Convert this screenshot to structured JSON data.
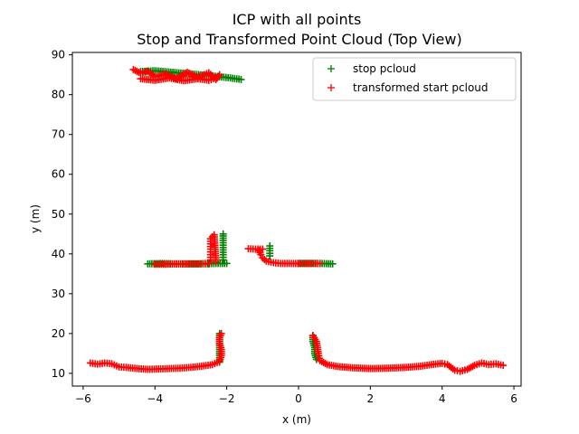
{
  "chart_data": {
    "type": "scatter",
    "title": "ICP with all points",
    "subtitle": "Stop and Transformed Point Cloud (Top View)",
    "xlabel": "x (m)",
    "ylabel": "y (m)",
    "xlim": [
      -6.3,
      6.2
    ],
    "ylim": [
      6.8,
      90.6
    ],
    "xticks": [
      -6,
      -4,
      -2,
      0,
      2,
      4,
      6
    ],
    "yticks": [
      10,
      20,
      30,
      40,
      50,
      60,
      70,
      80,
      90
    ],
    "grid": false,
    "legend_position": "top-right",
    "marker": "+",
    "series": [
      {
        "name": "stop pcloud",
        "color": "#008000",
        "segments": [
          {
            "x": [
              -4.4,
              -4.0,
              -3.5,
              -3.0,
              -2.5,
              -2.2,
              -1.9,
              -1.6
            ],
            "y": [
              85.8,
              86.0,
              85.6,
              85.2,
              84.8,
              84.5,
              84.2,
              83.8
            ]
          },
          {
            "x": [
              -4.2,
              -3.8,
              -3.4,
              -3.0,
              -2.6,
              -2.3,
              -2.0
            ],
            "y": [
              37.5,
              37.6,
              37.5,
              37.5,
              37.5,
              37.6,
              37.6
            ]
          },
          {
            "x": [
              -2.1,
              -2.1,
              -2.1,
              -2.1,
              -2.1,
              -2.1,
              -2.1
            ],
            "y": [
              38.5,
              39.8,
              41.0,
              42.2,
              43.4,
              44.5,
              45.0
            ]
          },
          {
            "x": [
              -0.8,
              -0.8,
              -0.8
            ],
            "y": [
              39.5,
              40.8,
              42.0
            ]
          },
          {
            "x": [
              0.0,
              0.3,
              0.6,
              0.95
            ],
            "y": [
              37.6,
              37.6,
              37.6,
              37.5
            ]
          },
          {
            "x": [
              -2.2,
              -2.2,
              -2.2,
              -2.2,
              -2.2
            ],
            "y": [
              12.8,
              14.5,
              16.5,
              18.5,
              20.0
            ]
          },
          {
            "x": [
              0.4,
              0.4,
              0.45,
              0.45,
              0.5
            ],
            "y": [
              19.5,
              18.0,
              16.5,
              15.0,
              13.5
            ]
          }
        ]
      },
      {
        "name": "transformed start pcloud",
        "color": "#ff0000",
        "segments": [
          {
            "x": [
              -4.6,
              -4.4,
              -4.2,
              -4.0,
              -3.7,
              -3.4,
              -3.1,
              -2.8,
              -2.5,
              -2.3,
              -2.2
            ],
            "y": [
              86.3,
              85.4,
              85.9,
              84.5,
              85.2,
              84.0,
              85.6,
              84.3,
              85.5,
              83.8,
              85.0
            ]
          },
          {
            "x": [
              -4.4,
              -4.0,
              -3.6,
              -3.2,
              -2.8,
              -2.5,
              -2.3
            ],
            "y": [
              84.0,
              83.6,
              84.2,
              83.5,
              84.0,
              83.6,
              84.2
            ]
          },
          {
            "x": [
              -4.0,
              -3.7,
              -3.4,
              -3.1,
              -2.8,
              -2.6,
              -2.5
            ],
            "y": [
              37.4,
              37.4,
              37.5,
              37.5,
              37.5,
              37.6,
              37.5
            ]
          },
          {
            "x": [
              -2.45,
              -2.45,
              -2.45,
              -2.45,
              -2.45,
              -2.35,
              -2.3
            ],
            "y": [
              38.5,
              39.8,
              41.2,
              42.5,
              43.8,
              44.8,
              38.0
            ]
          },
          {
            "x": [
              -1.4,
              -1.2,
              -1.0
            ],
            "y": [
              41.3,
              41.2,
              41.2
            ]
          },
          {
            "x": [
              -1.1,
              -1.05,
              -1.0,
              -0.9,
              -0.7,
              -0.5,
              -0.2,
              0.1,
              0.4,
              0.6
            ],
            "y": [
              40.8,
              39.8,
              39.0,
              38.2,
              37.8,
              37.6,
              37.6,
              37.6,
              37.6,
              37.6
            ]
          },
          {
            "x": [
              -5.8,
              -5.6,
              -5.4,
              -5.2,
              -5.0,
              -4.8,
              -4.5,
              -4.2,
              -3.9,
              -3.6,
              -3.3,
              -3.0,
              -2.7,
              -2.4,
              -2.2,
              -2.15,
              -2.15,
              -2.2,
              -2.2,
              -2.15
            ],
            "y": [
              12.6,
              12.3,
              12.6,
              12.4,
              11.6,
              11.5,
              11.2,
              11.0,
              11.1,
              11.2,
              11.3,
              11.5,
              11.8,
              12.2,
              13.0,
              14.5,
              16.0,
              17.5,
              19.0,
              20.0
            ]
          },
          {
            "x": [
              0.4,
              0.5,
              0.55,
              0.6,
              0.8,
              1.1,
              1.5,
              2.0,
              2.5,
              3.0,
              3.4,
              3.7,
              4.0,
              4.15,
              4.25,
              4.35,
              4.5,
              4.7,
              4.9,
              5.1,
              5.3,
              5.5,
              5.7
            ],
            "y": [
              19.5,
              18.0,
              15.0,
              13.2,
              12.2,
              11.7,
              11.4,
              11.2,
              11.3,
              11.5,
              11.8,
              12.2,
              12.5,
              12.2,
              11.5,
              10.8,
              10.5,
              11.0,
              12.0,
              12.6,
              12.2,
              12.4,
              12.0
            ]
          }
        ]
      }
    ]
  }
}
